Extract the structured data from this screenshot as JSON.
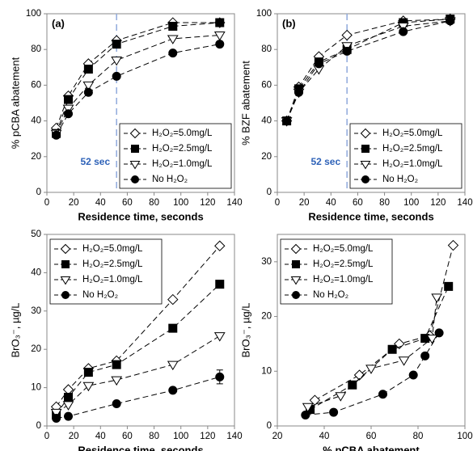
{
  "chart_data": [
    {
      "type": "line",
      "panel_label": "(a)",
      "xlabel": "Residence time, seconds",
      "ylabel": "% pCBA abatement",
      "xlim": [
        0,
        140
      ],
      "xticks": [
        0,
        20,
        40,
        60,
        80,
        100,
        120,
        140
      ],
      "ylim": [
        0,
        100
      ],
      "yticks": [
        0,
        20,
        40,
        60,
        80,
        100
      ],
      "vline": 52,
      "vline_label": "52 sec",
      "legend": "lower right",
      "series": [
        {
          "name": "H₂O₂=5.0mg/L",
          "color": "#000000",
          "marker": "diamond",
          "x": [
            7,
            16,
            31,
            52,
            94,
            129
          ],
          "values": [
            36,
            54,
            72,
            85,
            95,
            95
          ]
        },
        {
          "name": "H₂O₂=2.5mg/L",
          "color": "#000000",
          "marker": "square",
          "x": [
            7,
            16,
            31,
            52,
            94,
            129
          ],
          "values": [
            33,
            52,
            69,
            83,
            93,
            95
          ]
        },
        {
          "name": "H₂O₂=1.0mg/L",
          "color": "#000000",
          "marker": "triangle-down",
          "x": [
            7,
            16,
            31,
            52,
            94,
            129
          ],
          "values": [
            33,
            47,
            60,
            74,
            86,
            88
          ]
        },
        {
          "name": "No H₂O₂",
          "color": "#000000",
          "marker": "circle",
          "x": [
            7,
            16,
            31,
            52,
            94,
            129
          ],
          "values": [
            32,
            44,
            56,
            65,
            78,
            83
          ]
        }
      ]
    },
    {
      "type": "line",
      "panel_label": "(b)",
      "xlabel": "Residence time, seconds",
      "ylabel": "% BZF abatement",
      "xlim": [
        0,
        140
      ],
      "xticks": [
        0,
        20,
        40,
        60,
        80,
        100,
        120,
        140
      ],
      "ylim": [
        0,
        100
      ],
      "yticks": [
        0,
        20,
        40,
        60,
        80,
        100
      ],
      "vline": 52,
      "vline_label": "52 sec",
      "legend": "lower right",
      "series": [
        {
          "name": "H₂O₂=5.0mg/L",
          "color": "#000000",
          "marker": "diamond",
          "x": [
            7,
            16,
            31,
            52,
            94,
            129
          ],
          "values": [
            40,
            59,
            76,
            88,
            96,
            97
          ]
        },
        {
          "name": "H₂O₂=2.5mg/L",
          "color": "#000000",
          "marker": "square",
          "x": [
            7,
            16,
            31,
            52,
            94,
            129
          ],
          "values": [
            40,
            58,
            73,
            80,
            95,
            97
          ]
        },
        {
          "name": "H₂O₂=1.0mg/L",
          "color": "#000000",
          "marker": "triangle-down",
          "x": [
            7,
            16,
            31,
            52,
            94,
            129
          ],
          "values": [
            40,
            56,
            69,
            82,
            93,
            96
          ]
        },
        {
          "name": "No H₂O₂",
          "color": "#000000",
          "marker": "circle",
          "x": [
            7,
            16,
            31,
            52,
            94,
            129
          ],
          "values": [
            40,
            56,
            72,
            79,
            90,
            96
          ]
        }
      ]
    },
    {
      "type": "line",
      "panel_label": "(c)",
      "xlabel": "Residence time, seconds",
      "ylabel": "BrO₃⁻, µg/L",
      "xlim": [
        0,
        140
      ],
      "xticks": [
        0,
        20,
        40,
        60,
        80,
        100,
        120,
        140
      ],
      "ylim": [
        0,
        50
      ],
      "yticks": [
        0,
        10,
        20,
        30,
        40,
        50
      ],
      "legend": "upper left",
      "series": [
        {
          "name": "H₂O₂=5.0mg/L",
          "color": "#000000",
          "marker": "diamond",
          "x": [
            7,
            16,
            31,
            52,
            94,
            129
          ],
          "values": [
            5,
            9.5,
            15,
            17,
            33,
            47
          ]
        },
        {
          "name": "H₂O₂=2.5mg/L",
          "color": "#000000",
          "marker": "square",
          "x": [
            7,
            16,
            31,
            52,
            94,
            129
          ],
          "values": [
            3,
            7.5,
            14,
            16,
            25.5,
            37
          ]
        },
        {
          "name": "H₂O₂=1.0mg/L",
          "color": "#000000",
          "marker": "triangle-down",
          "x": [
            7,
            16,
            31,
            52,
            94,
            129
          ],
          "values": [
            3.5,
            5.5,
            10.5,
            12,
            16,
            23.5
          ]
        },
        {
          "name": "No H₂O₂",
          "color": "#000000",
          "marker": "circle",
          "x": [
            7,
            16,
            52,
            94,
            129
          ],
          "values": [
            2,
            2.5,
            5.8,
            9.3,
            12.8
          ],
          "errors": [
            null,
            null,
            null,
            null,
            1.8
          ]
        }
      ]
    },
    {
      "type": "line",
      "panel_label": "(d)",
      "xlabel": "% pCBA abatement",
      "ylabel": "BrO₃⁻, µg/L",
      "xlim": [
        20,
        100
      ],
      "xticks": [
        20,
        40,
        60,
        80,
        100
      ],
      "ylim": [
        0,
        35
      ],
      "yticks": [
        0,
        10,
        20,
        30
      ],
      "legend": "upper left",
      "series": [
        {
          "name": "H₂O₂=5.0mg/L",
          "color": "#000000",
          "marker": "diamond",
          "x": [
            36,
            55,
            72,
            85,
            95
          ],
          "values": [
            4.7,
            9.3,
            15,
            16.5,
            33
          ]
        },
        {
          "name": "H₂O₂=2.5mg/L",
          "color": "#000000",
          "marker": "square",
          "x": [
            34,
            52,
            69,
            83,
            93
          ],
          "values": [
            3,
            7.5,
            14,
            16,
            25.5
          ]
        },
        {
          "name": "H₂O₂=1.0mg/L",
          "color": "#000000",
          "marker": "triangle-down",
          "x": [
            33,
            47,
            60,
            74,
            86,
            88
          ],
          "values": [
            3.5,
            5.5,
            10.5,
            12,
            16,
            23.5
          ]
        },
        {
          "name": "No H₂O₂",
          "color": "#000000",
          "marker": "circle",
          "x": [
            32,
            44,
            65,
            78,
            83,
            89
          ],
          "values": [
            2,
            2.5,
            5.8,
            9.3,
            12.8,
            17
          ]
        }
      ]
    }
  ]
}
